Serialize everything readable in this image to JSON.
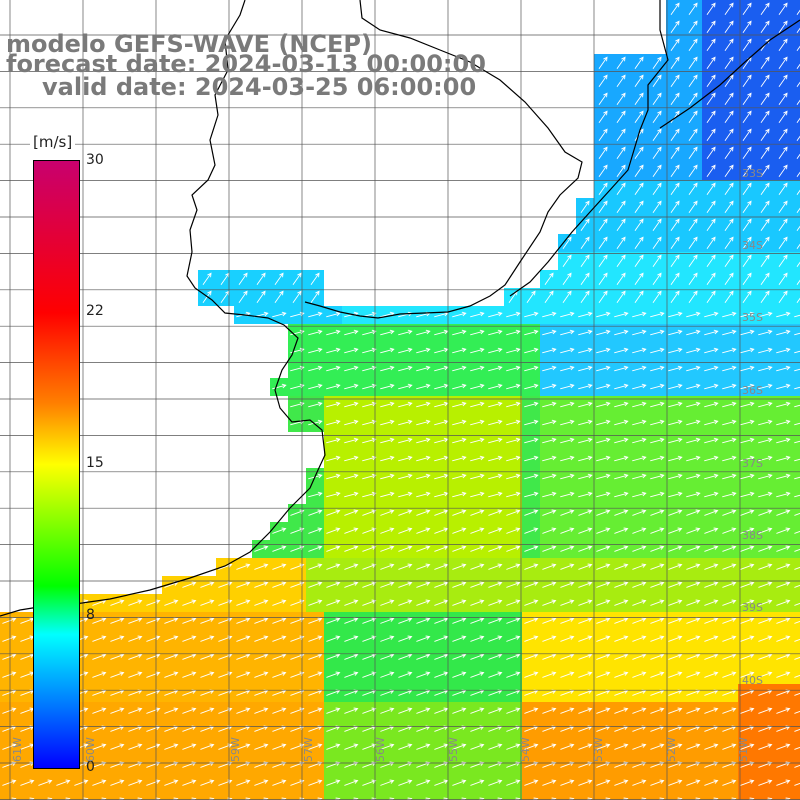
{
  "title": {
    "line1": "modelo GEFS-WAVE (NCEP)",
    "line2": "forecast date: 2024-03-13 00:00:00",
    "line3": "valid date: 2024-03-25 06:00:00"
  },
  "colorbar": {
    "unit": "[m/s]",
    "ticks": [
      "30",
      "22",
      "15",
      "8",
      "0"
    ],
    "colors": [
      "#0000ff",
      "#00ffff",
      "#00ff00",
      "#ffff00",
      "#ff8000",
      "#ff0000",
      "#c8006e"
    ]
  },
  "latitude_labels": [
    "33S",
    "34S",
    "35S",
    "36S",
    "37S",
    "38S",
    "39S",
    "40S"
  ],
  "longitude_labels": [
    "61W",
    "60W",
    "59W",
    "57W",
    "56W",
    "55W",
    "54W",
    "53W",
    "52W",
    "51W"
  ],
  "colors": {
    "land": "#ffffff",
    "coastline": "#000000",
    "grid": "#555555",
    "arrows": "#ffffff"
  }
}
